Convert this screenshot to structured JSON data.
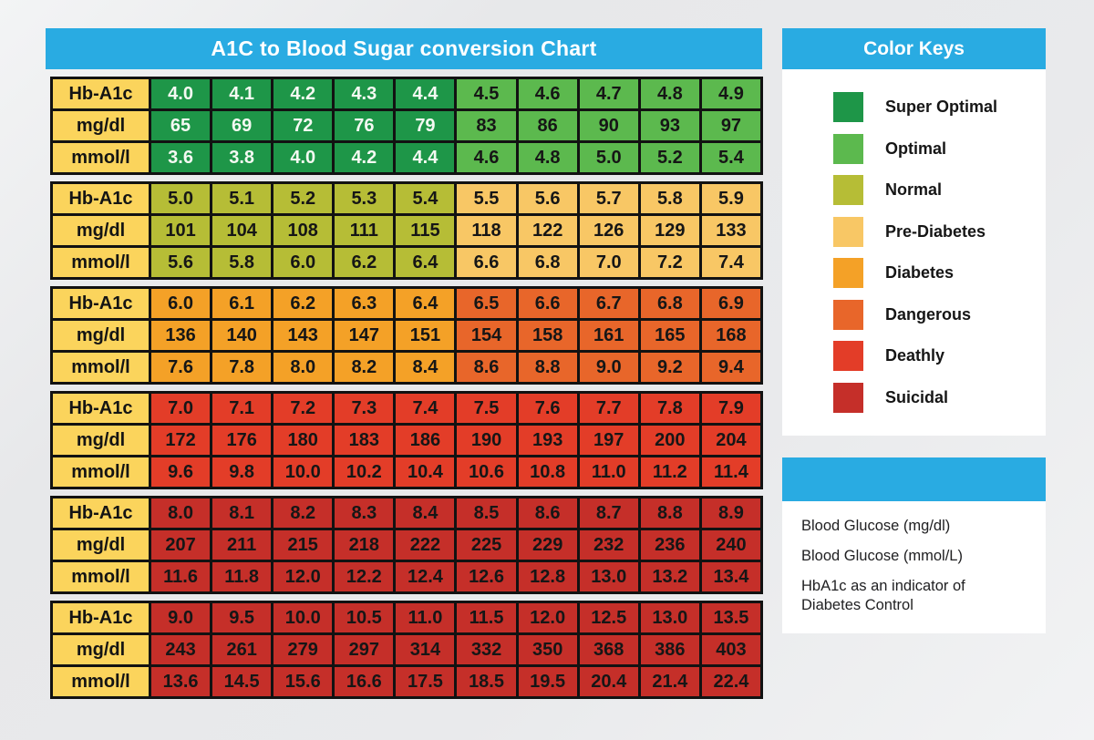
{
  "title": "A1C to Blood Sugar conversion Chart",
  "chart_data": {
    "type": "table",
    "title": "A1C to Blood Sugar conversion Chart",
    "row_labels": [
      "Hb-A1c",
      "mg/dl",
      "mmol/l"
    ],
    "blocks": [
      {
        "left_zone": "Super Optimal",
        "right_zone": "Optimal",
        "left_color": "#1e9648",
        "right_color": "#5cb94e",
        "left_text_color": "#f4f9f2",
        "right_text_color": "#161616",
        "rows": {
          "hba1c": [
            "4.0",
            "4.1",
            "4.2",
            "4.3",
            "4.4",
            "4.5",
            "4.6",
            "4.7",
            "4.8",
            "4.9"
          ],
          "mgdl": [
            "65",
            "69",
            "72",
            "76",
            "79",
            "83",
            "86",
            "90",
            "93",
            "97"
          ],
          "mmoll": [
            "3.6",
            "3.8",
            "4.0",
            "4.2",
            "4.4",
            "4.6",
            "4.8",
            "5.0",
            "5.2",
            "5.4"
          ]
        }
      },
      {
        "left_zone": "Normal",
        "right_zone": "Pre-Diabetes",
        "left_color": "#b6bd36",
        "right_color": "#f8c765",
        "left_text_color": "#161616",
        "right_text_color": "#161616",
        "rows": {
          "hba1c": [
            "5.0",
            "5.1",
            "5.2",
            "5.3",
            "5.4",
            "5.5",
            "5.6",
            "5.7",
            "5.8",
            "5.9"
          ],
          "mgdl": [
            "101",
            "104",
            "108",
            "111",
            "115",
            "118",
            "122",
            "126",
            "129",
            "133"
          ],
          "mmoll": [
            "5.6",
            "5.8",
            "6.0",
            "6.2",
            "6.4",
            "6.6",
            "6.8",
            "7.0",
            "7.2",
            "7.4"
          ]
        }
      },
      {
        "left_zone": "Diabetes",
        "right_zone": "Dangerous",
        "left_color": "#f4a127",
        "right_color": "#e8662a",
        "left_text_color": "#161616",
        "right_text_color": "#161616",
        "rows": {
          "hba1c": [
            "6.0",
            "6.1",
            "6.2",
            "6.3",
            "6.4",
            "6.5",
            "6.6",
            "6.7",
            "6.8",
            "6.9"
          ],
          "mgdl": [
            "136",
            "140",
            "143",
            "147",
            "151",
            "154",
            "158",
            "161",
            "165",
            "168"
          ],
          "mmoll": [
            "7.6",
            "7.8",
            "8.0",
            "8.2",
            "8.4",
            "8.6",
            "8.8",
            "9.0",
            "9.2",
            "9.4"
          ]
        }
      },
      {
        "left_zone": "Deathly",
        "right_zone": "Deathly",
        "left_color": "#e33d28",
        "right_color": "#e33d28",
        "left_text_color": "#161616",
        "right_text_color": "#161616",
        "rows": {
          "hba1c": [
            "7.0",
            "7.1",
            "7.2",
            "7.3",
            "7.4",
            "7.5",
            "7.6",
            "7.7",
            "7.8",
            "7.9"
          ],
          "mgdl": [
            "172",
            "176",
            "180",
            "183",
            "186",
            "190",
            "193",
            "197",
            "200",
            "204"
          ],
          "mmoll": [
            "9.6",
            "9.8",
            "10.0",
            "10.2",
            "10.4",
            "10.6",
            "10.8",
            "11.0",
            "11.2",
            "11.4"
          ]
        }
      },
      {
        "left_zone": "Suicidal",
        "right_zone": "Suicidal",
        "left_color": "#c52f29",
        "right_color": "#c52f29",
        "left_text_color": "#161616",
        "right_text_color": "#161616",
        "rows": {
          "hba1c": [
            "8.0",
            "8.1",
            "8.2",
            "8.3",
            "8.4",
            "8.5",
            "8.6",
            "8.7",
            "8.8",
            "8.9"
          ],
          "mgdl": [
            "207",
            "211",
            "215",
            "218",
            "222",
            "225",
            "229",
            "232",
            "236",
            "240"
          ],
          "mmoll": [
            "11.6",
            "11.8",
            "12.0",
            "12.2",
            "12.4",
            "12.6",
            "12.8",
            "13.0",
            "13.2",
            "13.4"
          ]
        }
      },
      {
        "left_zone": "Suicidal",
        "right_zone": "Suicidal",
        "left_color": "#c52f29",
        "right_color": "#c52f29",
        "left_text_color": "#161616",
        "right_text_color": "#161616",
        "rows": {
          "hba1c": [
            "9.0",
            "9.5",
            "10.0",
            "10.5",
            "11.0",
            "11.5",
            "12.0",
            "12.5",
            "13.0",
            "13.5"
          ],
          "mgdl": [
            "243",
            "261",
            "279",
            "297",
            "314",
            "332",
            "350",
            "368",
            "386",
            "403"
          ],
          "mmoll": [
            "13.6",
            "14.5",
            "15.6",
            "16.6",
            "17.5",
            "18.5",
            "19.5",
            "20.4",
            "21.4",
            "22.4"
          ]
        }
      }
    ]
  },
  "legend": {
    "title": "Color Keys",
    "items": [
      {
        "label": "Super Optimal",
        "color": "#1e9648"
      },
      {
        "label": "Optimal",
        "color": "#5cb94e"
      },
      {
        "label": "Normal",
        "color": "#b6bd36"
      },
      {
        "label": "Pre-Diabetes",
        "color": "#f8c765"
      },
      {
        "label": "Diabetes",
        "color": "#f4a127"
      },
      {
        "label": "Dangerous",
        "color": "#e8662a"
      },
      {
        "label": "Deathly",
        "color": "#e33d28"
      },
      {
        "label": "Suicidal",
        "color": "#c52f29"
      }
    ]
  },
  "notes": {
    "lines": [
      "Blood Glucose (mg/dl)",
      "Blood Glucose (mmol/L)",
      "HbA1c as an indicator of Diabetes Control"
    ]
  },
  "theme": {
    "accent_blue": "#29abe2",
    "label_yellow": "#fbd45c",
    "grid_black": "#121212",
    "page_background": "#e9eaec"
  }
}
